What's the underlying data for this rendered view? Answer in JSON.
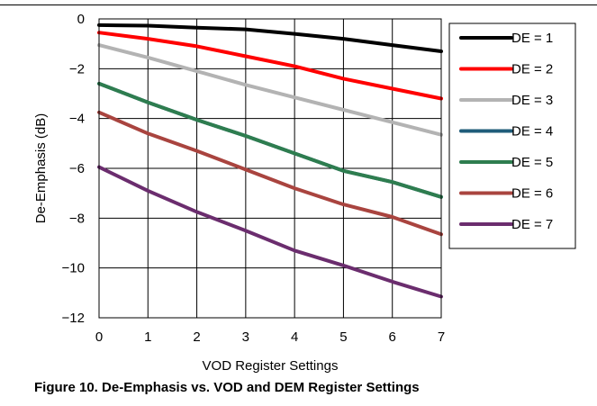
{
  "caption": "Figure 10. De-Emphasis vs. VOD and DEM Register Settings",
  "chart_data": {
    "type": "line",
    "xlabel": "VOD Register Settings",
    "ylabel": "De-Emphasis (dB)",
    "x": [
      0,
      1,
      2,
      3,
      4,
      5,
      6,
      7
    ],
    "xlim": [
      0,
      7
    ],
    "ylim": [
      -12,
      0
    ],
    "xticks": [
      "0",
      "1",
      "2",
      "3",
      "4",
      "5",
      "6",
      "7"
    ],
    "yticks": [
      "0",
      "−2",
      "−4",
      "−6",
      "−8",
      "−10",
      "−12"
    ],
    "grid": true,
    "legend_position": "right",
    "series": [
      {
        "name": "DE = 1",
        "color": "#000000",
        "values": [
          -0.25,
          -0.27,
          -0.35,
          -0.42,
          -0.6,
          -0.8,
          -1.05,
          -1.3
        ]
      },
      {
        "name": "DE = 2",
        "color": "#ff0000",
        "values": [
          -0.55,
          -0.8,
          -1.1,
          -1.5,
          -1.9,
          -2.4,
          -2.8,
          -3.2
        ]
      },
      {
        "name": "DE = 3",
        "color": "#b3b3b3",
        "values": [
          -1.05,
          -1.55,
          -2.1,
          -2.65,
          -3.15,
          -3.65,
          -4.15,
          -4.65
        ]
      },
      {
        "name": "DE = 4",
        "color": "#1f5c7a",
        "values": [
          -2.6,
          -3.35,
          -4.05,
          -4.7,
          -5.4,
          -6.1,
          -6.55,
          -7.15
        ]
      },
      {
        "name": "DE = 5",
        "color": "#2e7d4f",
        "values": [
          -2.6,
          -3.35,
          -4.05,
          -4.7,
          -5.4,
          -6.1,
          -6.55,
          -7.15
        ]
      },
      {
        "name": "DE = 6",
        "color": "#a9443f",
        "values": [
          -3.75,
          -4.6,
          -5.3,
          -6.05,
          -6.8,
          -7.45,
          -7.95,
          -8.65
        ]
      },
      {
        "name": "DE = 7",
        "color": "#6b2d6e",
        "values": [
          -5.95,
          -6.9,
          -7.75,
          -8.5,
          -9.3,
          -9.9,
          -10.55,
          -11.15
        ]
      }
    ]
  }
}
